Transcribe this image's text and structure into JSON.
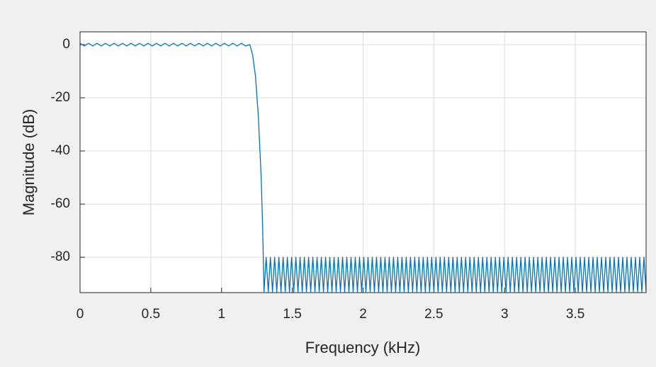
{
  "chart_data": {
    "type": "line",
    "x_label": "Frequency (kHz)",
    "y_label": "Magnitude (dB)",
    "color": "#0072bd",
    "grid": true,
    "xlim": [
      0,
      4
    ],
    "ylim": [
      -93.3,
      4.8
    ],
    "xticks": [
      0,
      0.5,
      1,
      1.5,
      2,
      2.5,
      3,
      3.5
    ],
    "yticks": [
      0,
      -20,
      -40,
      -60,
      -80
    ],
    "x": [
      0,
      0.03,
      0.06,
      0.09,
      0.12,
      0.15,
      0.18,
      0.21,
      0.24,
      0.27,
      0.3,
      0.33,
      0.36,
      0.39,
      0.42,
      0.45,
      0.48,
      0.51,
      0.54,
      0.57,
      0.6,
      0.63,
      0.66,
      0.69,
      0.72,
      0.75,
      0.78,
      0.81,
      0.84,
      0.87,
      0.9,
      0.93,
      0.96,
      0.99,
      1.02,
      1.05,
      1.08,
      1.11,
      1.14,
      1.17,
      1.2,
      1.22,
      1.24,
      1.26,
      1.28,
      1.29,
      1.3,
      1.315,
      1.33,
      1.345,
      1.36,
      1.375,
      1.39,
      1.405,
      1.42,
      1.435,
      1.45,
      1.465,
      1.48,
      1.495,
      1.51,
      1.525,
      1.54,
      1.555,
      1.57,
      1.585,
      1.6,
      1.615,
      1.63,
      1.645,
      1.66,
      1.675,
      1.69,
      1.705,
      1.72,
      1.735,
      1.75,
      1.765,
      1.78,
      1.795,
      1.81,
      1.825,
      1.84,
      1.855,
      1.87,
      1.885,
      1.9,
      1.915,
      1.93,
      1.945,
      1.96,
      1.975,
      1.99,
      2.005,
      2.02,
      2.035,
      2.05,
      2.065,
      2.08,
      2.095,
      2.11,
      2.125,
      2.14,
      2.155,
      2.17,
      2.185,
      2.2,
      2.215,
      2.23,
      2.245,
      2.26,
      2.275,
      2.29,
      2.305,
      2.32,
      2.335,
      2.35,
      2.365,
      2.38,
      2.395,
      2.41,
      2.425,
      2.44,
      2.455,
      2.47,
      2.485,
      2.5,
      2.515,
      2.53,
      2.545,
      2.56,
      2.575,
      2.59,
      2.605,
      2.62,
      2.635,
      2.65,
      2.665,
      2.68,
      2.695,
      2.71,
      2.725,
      2.74,
      2.755,
      2.77,
      2.785,
      2.8,
      2.815,
      2.83,
      2.845,
      2.86,
      2.875,
      2.89,
      2.905,
      2.92,
      2.935,
      2.95,
      2.965,
      2.98,
      2.995,
      3.01,
      3.025,
      3.04,
      3.055,
      3.07,
      3.085,
      3.1,
      3.115,
      3.13,
      3.145,
      3.16,
      3.175,
      3.19,
      3.205,
      3.22,
      3.235,
      3.25,
      3.265,
      3.28,
      3.295,
      3.31,
      3.325,
      3.34,
      3.355,
      3.37,
      3.385,
      3.4,
      3.415,
      3.43,
      3.445,
      3.46,
      3.475,
      3.49,
      3.505,
      3.52,
      3.535,
      3.55,
      3.565,
      3.58,
      3.595,
      3.61,
      3.625,
      3.64,
      3.655,
      3.67,
      3.685,
      3.7,
      3.715,
      3.73,
      3.745,
      3.76,
      3.775,
      3.79,
      3.805,
      3.82,
      3.835,
      3.85,
      3.865,
      3.88,
      3.895,
      3.91,
      3.925,
      3.94,
      3.955,
      3.97,
      3.985,
      4
    ],
    "values": [
      0.5,
      -0.5,
      0.5,
      -0.5,
      0.5,
      -0.5,
      0.5,
      -0.5,
      0.5,
      -0.5,
      0.5,
      -0.5,
      0.5,
      -0.5,
      0.5,
      -0.5,
      0.5,
      -0.5,
      0.5,
      -0.5,
      0.5,
      -0.5,
      0.5,
      -0.5,
      0.5,
      -0.5,
      0.5,
      -0.5,
      0.5,
      -0.5,
      0.5,
      -0.5,
      0.5,
      -0.5,
      0.5,
      -0.5,
      0.5,
      -0.5,
      0.5,
      -0.5,
      0,
      -4,
      -12,
      -27,
      -50,
      -68,
      -93,
      -80,
      -93,
      -80,
      -93,
      -80,
      -93,
      -80,
      -93,
      -80,
      -93,
      -80,
      -93,
      -80,
      -93,
      -80,
      -93,
      -80,
      -93,
      -80,
      -93,
      -80,
      -93,
      -80,
      -93,
      -80,
      -93,
      -80,
      -93,
      -80,
      -93,
      -80,
      -93,
      -80,
      -93,
      -80,
      -93,
      -80,
      -93,
      -80,
      -93,
      -80,
      -93,
      -80,
      -93,
      -80,
      -93,
      -80,
      -93,
      -80,
      -93,
      -80,
      -93,
      -80,
      -93,
      -80,
      -93,
      -80,
      -93,
      -80,
      -93,
      -80,
      -93,
      -80,
      -93,
      -80,
      -93,
      -80,
      -93,
      -80,
      -93,
      -80,
      -93,
      -80,
      -93,
      -80,
      -93,
      -80,
      -93,
      -80,
      -93,
      -80,
      -93,
      -80,
      -93,
      -80,
      -93,
      -80,
      -93,
      -80,
      -93,
      -80,
      -93,
      -80,
      -93,
      -80,
      -93,
      -80,
      -93,
      -80,
      -93,
      -80,
      -93,
      -80,
      -93,
      -80,
      -93,
      -80,
      -93,
      -80,
      -93,
      -80,
      -93,
      -80,
      -93,
      -80,
      -93,
      -80,
      -93,
      -80,
      -93,
      -80,
      -93,
      -80,
      -93,
      -80,
      -93,
      -80,
      -93,
      -80,
      -93,
      -80,
      -93,
      -80,
      -93,
      -80,
      -93,
      -80,
      -93,
      -80,
      -93,
      -80,
      -93,
      -80,
      -93,
      -80,
      -93,
      -80,
      -93,
      -80,
      -93,
      -80,
      -93,
      -80,
      -93,
      -80,
      -93,
      -80,
      -93,
      -80,
      -93,
      -80,
      -93,
      -80,
      -93,
      -80,
      -93,
      -80,
      -93,
      -80,
      -93,
      -80,
      -93,
      -80,
      -93,
      -80,
      -93,
      -80,
      -93,
      -80,
      -93
    ]
  }
}
